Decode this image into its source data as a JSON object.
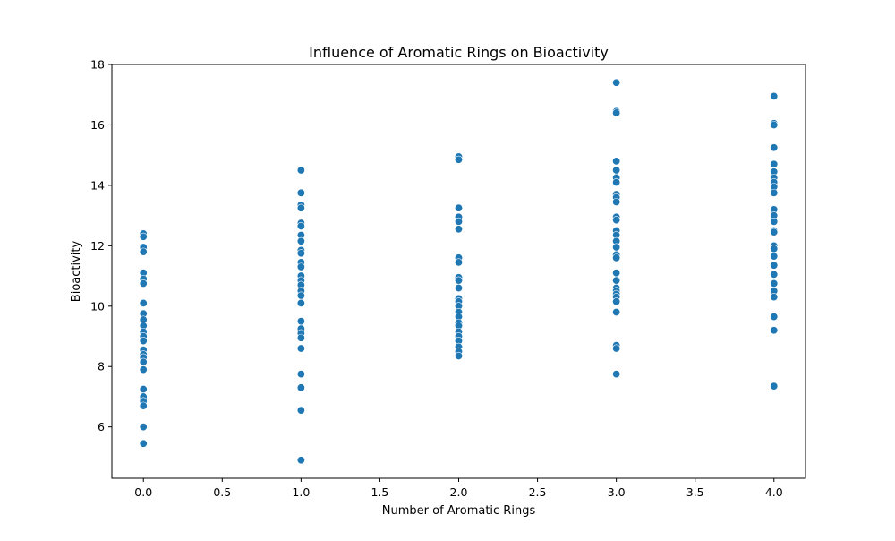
{
  "chart_data": {
    "type": "scatter",
    "title": "Influence of Aromatic Rings on Bioactivity",
    "xlabel": "Number of Aromatic Rings",
    "ylabel": "Bioactivity",
    "xlim": [
      -0.2,
      4.2
    ],
    "ylim": [
      4.3,
      18
    ],
    "xticks": [
      0.0,
      0.5,
      1.0,
      1.5,
      2.0,
      2.5,
      3.0,
      3.5,
      4.0
    ],
    "xtick_labels": [
      "0.0",
      "0.5",
      "1.0",
      "1.5",
      "2.0",
      "2.5",
      "3.0",
      "3.5",
      "4.0"
    ],
    "yticks": [
      6,
      8,
      10,
      12,
      14,
      16,
      18
    ],
    "ytick_labels": [
      "6",
      "8",
      "10",
      "12",
      "14",
      "16",
      "18"
    ],
    "grid": false,
    "legend": "none",
    "marker_color": "#1f77b4",
    "points": [
      {
        "x": 0,
        "y": 12.4
      },
      {
        "x": 0,
        "y": 12.3
      },
      {
        "x": 0,
        "y": 11.95
      },
      {
        "x": 0,
        "y": 11.8
      },
      {
        "x": 0,
        "y": 11.1
      },
      {
        "x": 0,
        "y": 10.9
      },
      {
        "x": 0,
        "y": 10.75
      },
      {
        "x": 0,
        "y": 10.1
      },
      {
        "x": 0,
        "y": 9.75
      },
      {
        "x": 0,
        "y": 9.55
      },
      {
        "x": 0,
        "y": 9.35
      },
      {
        "x": 0,
        "y": 9.15
      },
      {
        "x": 0,
        "y": 9.0
      },
      {
        "x": 0,
        "y": 8.85
      },
      {
        "x": 0,
        "y": 8.55
      },
      {
        "x": 0,
        "y": 8.4
      },
      {
        "x": 0,
        "y": 8.3
      },
      {
        "x": 0,
        "y": 8.15
      },
      {
        "x": 0,
        "y": 7.9
      },
      {
        "x": 0,
        "y": 7.25
      },
      {
        "x": 0,
        "y": 7.0
      },
      {
        "x": 0,
        "y": 6.85
      },
      {
        "x": 0,
        "y": 6.7
      },
      {
        "x": 0,
        "y": 6.0
      },
      {
        "x": 0,
        "y": 5.45
      },
      {
        "x": 1,
        "y": 14.5
      },
      {
        "x": 1,
        "y": 13.75
      },
      {
        "x": 1,
        "y": 13.35
      },
      {
        "x": 1,
        "y": 13.25
      },
      {
        "x": 1,
        "y": 12.75
      },
      {
        "x": 1,
        "y": 12.65
      },
      {
        "x": 1,
        "y": 12.35
      },
      {
        "x": 1,
        "y": 12.15
      },
      {
        "x": 1,
        "y": 11.85
      },
      {
        "x": 1,
        "y": 11.75
      },
      {
        "x": 1,
        "y": 11.45
      },
      {
        "x": 1,
        "y": 11.3
      },
      {
        "x": 1,
        "y": 11.0
      },
      {
        "x": 1,
        "y": 10.85
      },
      {
        "x": 1,
        "y": 10.7
      },
      {
        "x": 1,
        "y": 10.5
      },
      {
        "x": 1,
        "y": 10.35
      },
      {
        "x": 1,
        "y": 10.1
      },
      {
        "x": 1,
        "y": 9.5
      },
      {
        "x": 1,
        "y": 9.25
      },
      {
        "x": 1,
        "y": 9.1
      },
      {
        "x": 1,
        "y": 8.95
      },
      {
        "x": 1,
        "y": 8.6
      },
      {
        "x": 1,
        "y": 7.75
      },
      {
        "x": 1,
        "y": 7.3
      },
      {
        "x": 1,
        "y": 6.55
      },
      {
        "x": 1,
        "y": 4.9
      },
      {
        "x": 2,
        "y": 14.95
      },
      {
        "x": 2,
        "y": 14.85
      },
      {
        "x": 2,
        "y": 13.25
      },
      {
        "x": 2,
        "y": 12.95
      },
      {
        "x": 2,
        "y": 12.8
      },
      {
        "x": 2,
        "y": 12.55
      },
      {
        "x": 2,
        "y": 11.6
      },
      {
        "x": 2,
        "y": 11.45
      },
      {
        "x": 2,
        "y": 10.95
      },
      {
        "x": 2,
        "y": 10.85
      },
      {
        "x": 2,
        "y": 10.6
      },
      {
        "x": 2,
        "y": 10.25
      },
      {
        "x": 2,
        "y": 10.15
      },
      {
        "x": 2,
        "y": 10.0
      },
      {
        "x": 2,
        "y": 9.8
      },
      {
        "x": 2,
        "y": 9.65
      },
      {
        "x": 2,
        "y": 9.45
      },
      {
        "x": 2,
        "y": 9.35
      },
      {
        "x": 2,
        "y": 9.15
      },
      {
        "x": 2,
        "y": 9.0
      },
      {
        "x": 2,
        "y": 8.85
      },
      {
        "x": 2,
        "y": 8.65
      },
      {
        "x": 2,
        "y": 8.5
      },
      {
        "x": 2,
        "y": 8.35
      },
      {
        "x": 3,
        "y": 17.4
      },
      {
        "x": 3,
        "y": 16.45
      },
      {
        "x": 3,
        "y": 16.4
      },
      {
        "x": 3,
        "y": 14.8
      },
      {
        "x": 3,
        "y": 14.5
      },
      {
        "x": 3,
        "y": 14.25
      },
      {
        "x": 3,
        "y": 14.1
      },
      {
        "x": 3,
        "y": 13.7
      },
      {
        "x": 3,
        "y": 13.6
      },
      {
        "x": 3,
        "y": 13.45
      },
      {
        "x": 3,
        "y": 12.95
      },
      {
        "x": 3,
        "y": 12.85
      },
      {
        "x": 3,
        "y": 12.5
      },
      {
        "x": 3,
        "y": 12.35
      },
      {
        "x": 3,
        "y": 12.15
      },
      {
        "x": 3,
        "y": 11.95
      },
      {
        "x": 3,
        "y": 11.7
      },
      {
        "x": 3,
        "y": 11.6
      },
      {
        "x": 3,
        "y": 11.1
      },
      {
        "x": 3,
        "y": 10.85
      },
      {
        "x": 3,
        "y": 10.6
      },
      {
        "x": 3,
        "y": 10.5
      },
      {
        "x": 3,
        "y": 10.4
      },
      {
        "x": 3,
        "y": 10.3
      },
      {
        "x": 3,
        "y": 10.15
      },
      {
        "x": 3,
        "y": 9.8
      },
      {
        "x": 3,
        "y": 8.7
      },
      {
        "x": 3,
        "y": 8.6
      },
      {
        "x": 3,
        "y": 7.75
      },
      {
        "x": 4,
        "y": 16.95
      },
      {
        "x": 4,
        "y": 16.05
      },
      {
        "x": 4,
        "y": 16.0
      },
      {
        "x": 4,
        "y": 15.25
      },
      {
        "x": 4,
        "y": 14.7
      },
      {
        "x": 4,
        "y": 14.45
      },
      {
        "x": 4,
        "y": 14.25
      },
      {
        "x": 4,
        "y": 14.1
      },
      {
        "x": 4,
        "y": 13.95
      },
      {
        "x": 4,
        "y": 13.75
      },
      {
        "x": 4,
        "y": 13.2
      },
      {
        "x": 4,
        "y": 13.0
      },
      {
        "x": 4,
        "y": 12.8
      },
      {
        "x": 4,
        "y": 12.5
      },
      {
        "x": 4,
        "y": 12.45
      },
      {
        "x": 4,
        "y": 12.0
      },
      {
        "x": 4,
        "y": 11.9
      },
      {
        "x": 4,
        "y": 11.65
      },
      {
        "x": 4,
        "y": 11.35
      },
      {
        "x": 4,
        "y": 11.05
      },
      {
        "x": 4,
        "y": 10.75
      },
      {
        "x": 4,
        "y": 10.5
      },
      {
        "x": 4,
        "y": 10.3
      },
      {
        "x": 4,
        "y": 9.65
      },
      {
        "x": 4,
        "y": 9.2
      },
      {
        "x": 4,
        "y": 7.35
      }
    ]
  }
}
